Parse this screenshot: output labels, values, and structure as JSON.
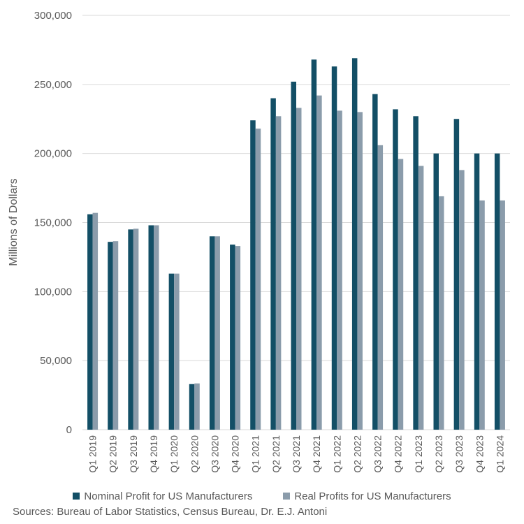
{
  "chart_data": {
    "type": "bar",
    "title": "",
    "xlabel": "",
    "ylabel": "Millions of Dollars",
    "ylim": [
      0,
      300000
    ],
    "yticks": [
      "0",
      "50,000",
      "100,000",
      "150,000",
      "200,000",
      "250,000",
      "300,000"
    ],
    "ytick_values": [
      0,
      50000,
      100000,
      150000,
      200000,
      250000,
      300000
    ],
    "grid": true,
    "legend_position": "bottom",
    "categories": [
      "Q1 2019",
      "Q2 2019",
      "Q3 2019",
      "Q4 2019",
      "Q1 2020",
      "Q2 2020",
      "Q3 2020",
      "Q4 2020",
      "Q1 2021",
      "Q2 2021",
      "Q3 2021",
      "Q4 2021",
      "Q1 2022",
      "Q2 2022",
      "Q3 2022",
      "Q4 2022",
      "Q1 2023",
      "Q2 2023",
      "Q3 2023",
      "Q4 2023",
      "Q1 2024"
    ],
    "series": [
      {
        "name": "Nominal Profit for US Manufacturers",
        "color": "#134f66",
        "values": [
          156000,
          136000,
          145000,
          148000,
          113000,
          33000,
          140000,
          134000,
          224000,
          240000,
          252000,
          268000,
          263000,
          269000,
          243000,
          232000,
          227000,
          200000,
          225000,
          200000,
          200000
        ]
      },
      {
        "name": "Real Profits for US Manufacturers",
        "color": "#8b9cab",
        "values": [
          157000,
          136500,
          145500,
          148000,
          113000,
          33500,
          140000,
          133000,
          218000,
          227000,
          233000,
          242000,
          231000,
          230000,
          206000,
          196000,
          191000,
          169000,
          188000,
          166000,
          166000
        ]
      }
    ]
  },
  "footer": {
    "source": "Sources: Bureau of Labor Statistics, Census Bureau, Dr. E.J. Antoni"
  }
}
